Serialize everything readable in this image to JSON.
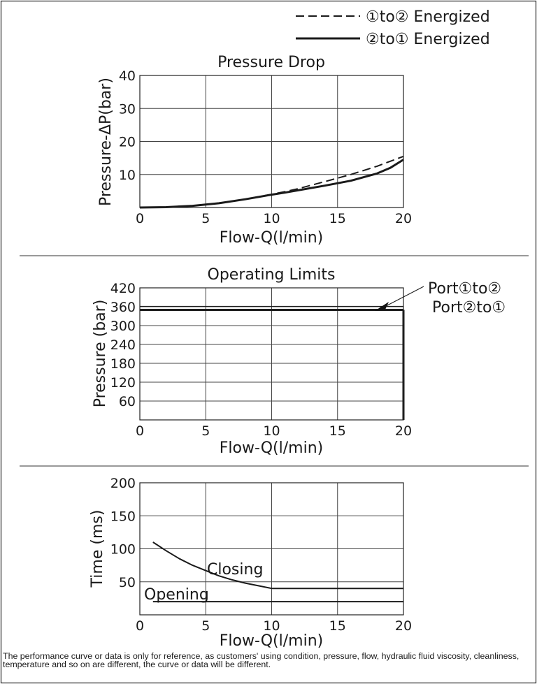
{
  "legend": {
    "dashed_label": "①to② Energized",
    "solid_label": "②to① Energized"
  },
  "footnote": "The performance curve or data is only for reference, as customers' using condition, pressure, flow, hydraulic fluid viscosity, cleanliness, temperature and so on are different, the curve or data will be different.",
  "chart_data": [
    {
      "type": "line",
      "title": "Pressure Drop",
      "xlabel": "Flow-Q(l/min)",
      "ylabel": "Pressure-ΔP(bar)",
      "xlim": [
        0,
        20
      ],
      "ylim": [
        0,
        40
      ],
      "xticks": [
        "0",
        "5",
        "10",
        "15",
        "20"
      ],
      "yticks": [
        "10",
        "20",
        "30",
        "40"
      ],
      "grid": true,
      "series": [
        {
          "name": "①to② Energized",
          "style": "dashed",
          "x": [
            0,
            2,
            4,
            6,
            8,
            10,
            11,
            12,
            14,
            16,
            18,
            20
          ],
          "y": [
            0,
            0.1,
            0.5,
            1.3,
            2.5,
            4.0,
            4.8,
            5.7,
            7.8,
            10.0,
            12.5,
            15.5
          ]
        },
        {
          "name": "②to① Energized",
          "style": "solid",
          "x": [
            0,
            2,
            4,
            6,
            8,
            10,
            11,
            12,
            14,
            16,
            18,
            19,
            20
          ],
          "y": [
            0,
            0.1,
            0.5,
            1.3,
            2.5,
            3.9,
            4.5,
            5.2,
            6.6,
            8.1,
            10.3,
            12.0,
            14.5
          ]
        }
      ]
    },
    {
      "type": "line",
      "title": "Operating Limits",
      "xlabel": "Flow-Q(l/min)",
      "ylabel": "Pressure (bar)",
      "xlim": [
        0,
        20
      ],
      "ylim": [
        0,
        420
      ],
      "xticks": [
        "0",
        "5",
        "10",
        "15",
        "20"
      ],
      "yticks": [
        "60",
        "120",
        "180",
        "240",
        "300",
        "360",
        "420"
      ],
      "grid": true,
      "annotations": [
        "Port①to②",
        "Port②to①"
      ],
      "series": [
        {
          "name": "Port①to②",
          "x": [
            0,
            20
          ],
          "y": [
            350,
            350
          ]
        },
        {
          "name": "Port②to①",
          "x": [
            0,
            20
          ],
          "y": [
            350,
            350
          ]
        }
      ]
    },
    {
      "type": "line",
      "xlabel": "Flow-Q(l/min)",
      "ylabel": "Time (ms)",
      "xlim": [
        0,
        20
      ],
      "ylim": [
        0,
        200
      ],
      "xticks": [
        "0",
        "5",
        "10",
        "15",
        "20"
      ],
      "yticks": [
        "50",
        "100",
        "150",
        "200"
      ],
      "grid": true,
      "series": [
        {
          "name": "Closing",
          "x": [
            1,
            2,
            3,
            4,
            5,
            6,
            7,
            8,
            9,
            10,
            20
          ],
          "y": [
            110,
            97,
            85,
            75,
            67,
            59,
            53,
            48,
            44,
            40,
            40
          ]
        },
        {
          "name": "Opening",
          "x": [
            1,
            20
          ],
          "y": [
            20,
            20
          ]
        }
      ]
    }
  ]
}
